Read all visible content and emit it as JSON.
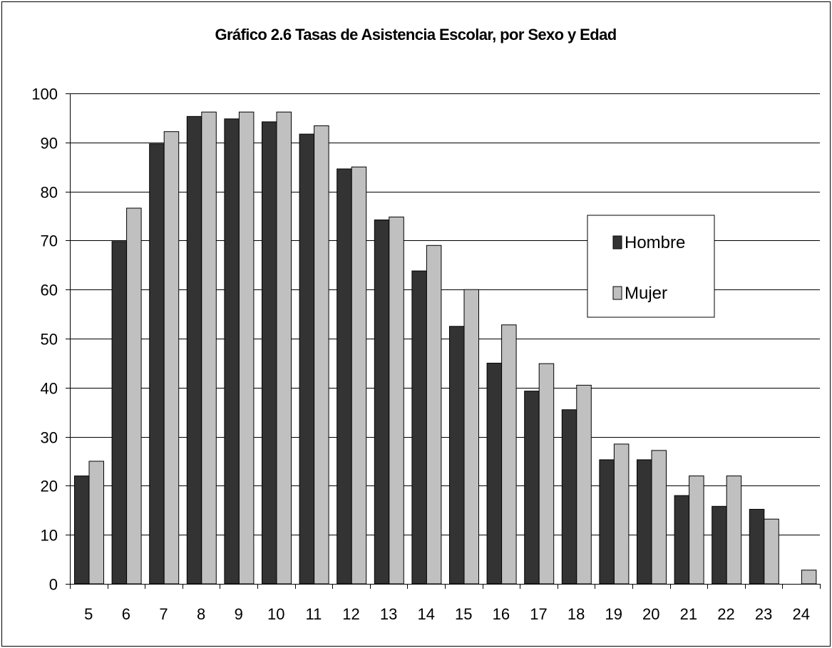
{
  "chart_data": {
    "type": "bar",
    "title": "Gráfico 2.6  Tasas de Asistencia Escolar,  por Sexo y Edad",
    "xlabel": "",
    "ylabel": "",
    "categories": [
      "5",
      "6",
      "7",
      "8",
      "9",
      "10",
      "11",
      "12",
      "13",
      "14",
      "15",
      "16",
      "17",
      "18",
      "19",
      "20",
      "21",
      "22",
      "23",
      "24"
    ],
    "series": [
      {
        "name": "Hombre",
        "color": "#333333",
        "values": [
          22,
          69.8,
          89.7,
          95.3,
          94.8,
          94.2,
          91.7,
          84.6,
          74.2,
          63.8,
          52.5,
          45,
          39.3,
          35.5,
          25.3,
          25.3,
          18,
          15.8,
          15.2,
          0
        ]
      },
      {
        "name": "Mujer",
        "color": "#c0c0c0",
        "values": [
          25,
          76.6,
          92.2,
          96.2,
          96.2,
          96.2,
          93.4,
          85,
          74.8,
          69,
          60,
          52.8,
          44.9,
          40.5,
          28.5,
          27.2,
          22,
          22,
          13.2,
          2.8
        ]
      }
    ],
    "ylim": [
      0,
      100
    ],
    "yticks": [
      0,
      10,
      20,
      30,
      40,
      50,
      60,
      70,
      80,
      90,
      100
    ],
    "grid": true,
    "legend_position": "right"
  }
}
